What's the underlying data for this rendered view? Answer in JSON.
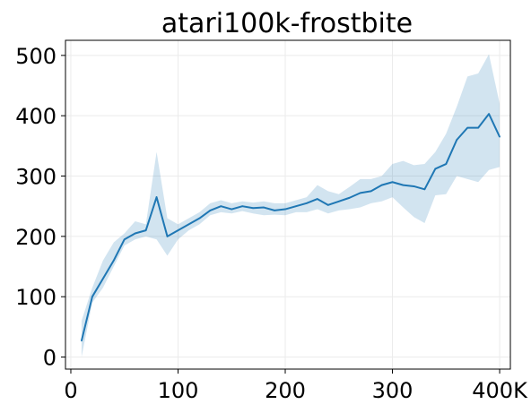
{
  "chart_data": {
    "type": "line",
    "title": "atari100k-frostbite",
    "xlabel": "",
    "ylabel": "",
    "xlim": [
      -5,
      410
    ],
    "ylim": [
      -20,
      525
    ],
    "x_ticks": [
      0,
      100,
      200,
      300,
      400
    ],
    "x_tick_labels": [
      "0",
      "100",
      "200",
      "300",
      "400K"
    ],
    "y_ticks": [
      0,
      100,
      200,
      300,
      400,
      500
    ],
    "y_tick_labels": [
      "0",
      "100",
      "200",
      "300",
      "400",
      "500"
    ],
    "grid": true,
    "legend": "none",
    "colors": {
      "line": "#1f77b4",
      "band": "#1f77b4"
    },
    "series": [
      {
        "x": [
          10,
          20,
          30,
          40,
          50,
          60,
          70,
          80,
          90,
          100,
          110,
          120,
          130,
          140,
          150,
          160,
          170,
          180,
          190,
          200,
          210,
          220,
          230,
          240,
          250,
          260,
          270,
          280,
          290,
          300,
          310,
          320,
          330,
          340,
          350,
          360,
          370,
          380,
          390,
          400
        ],
        "mean": [
          27,
          100,
          130,
          160,
          195,
          205,
          210,
          265,
          200,
          210,
          220,
          230,
          243,
          250,
          245,
          250,
          247,
          248,
          243,
          245,
          250,
          255,
          262,
          252,
          258,
          264,
          272,
          275,
          285,
          290,
          285,
          283,
          278,
          312,
          320,
          360,
          380,
          380,
          403,
          365
        ],
        "lower": [
          0,
          90,
          115,
          150,
          185,
          195,
          200,
          195,
          168,
          195,
          210,
          220,
          235,
          240,
          238,
          242,
          238,
          235,
          236,
          235,
          240,
          240,
          245,
          238,
          243,
          245,
          248,
          255,
          258,
          265,
          248,
          232,
          222,
          268,
          270,
          300,
          295,
          290,
          310,
          315
        ],
        "upper": [
          60,
          115,
          160,
          190,
          205,
          225,
          220,
          340,
          230,
          220,
          230,
          240,
          255,
          260,
          255,
          258,
          256,
          258,
          255,
          255,
          260,
          265,
          285,
          275,
          270,
          282,
          295,
          295,
          300,
          320,
          325,
          318,
          320,
          340,
          370,
          415,
          465,
          470,
          502,
          420
        ]
      }
    ]
  }
}
